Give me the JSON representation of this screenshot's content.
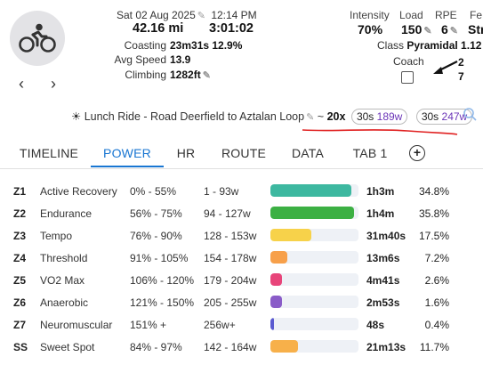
{
  "activity": {
    "date": "Sat 02 Aug 2025",
    "time": "12:14 PM",
    "distance": "42.16 mi",
    "duration": "3:01:02",
    "coasting_label": "Coasting",
    "coasting_value": "23m31s 12.9%",
    "avg_speed_label": "Avg Speed",
    "avg_speed_value": "13.9",
    "climbing_label": "Climbing",
    "climbing_value": "1282ft"
  },
  "metrics": {
    "intensity_label": "Intensity",
    "intensity_value": "70%",
    "load_label": "Load",
    "load_value": "150",
    "rpe_label": "RPE",
    "rpe_value": "6",
    "feel_label": "Fe",
    "feel_value": "Str",
    "class_label": "Class",
    "class_value": "Pyramidal 1.12",
    "coach_label": "Coach",
    "coach_num_1": "2",
    "coach_num_2": "7"
  },
  "title": {
    "text": "Lunch Ride - Road Deerfield to Aztalan Loop",
    "repeat": "~",
    "reps": "20x",
    "pill1_dur": "30s",
    "pill1_watts": "189w",
    "pill2_dur": "30s",
    "pill2_watts": "247w"
  },
  "nav": {
    "prev": "‹",
    "next": "›"
  },
  "tabs": [
    {
      "label": "TIMELINE"
    },
    {
      "label": "POWER"
    },
    {
      "label": "HR"
    },
    {
      "label": "ROUTE"
    },
    {
      "label": "DATA"
    },
    {
      "label": "TAB 1"
    }
  ],
  "active_tab": "POWER",
  "zones": [
    {
      "code": "Z1",
      "name": "Active Recovery",
      "pct": "0% - 55%",
      "watts": "1 - 93w",
      "time": "1h3m",
      "share": "34.8%",
      "fraction": 0.348,
      "color": "#3db8a0"
    },
    {
      "code": "Z2",
      "name": "Endurance",
      "pct": "56% - 75%",
      "watts": "94 - 127w",
      "time": "1h4m",
      "share": "35.8%",
      "fraction": 0.358,
      "color": "#3cb043"
    },
    {
      "code": "Z3",
      "name": "Tempo",
      "pct": "76% - 90%",
      "watts": "128 - 153w",
      "time": "31m40s",
      "share": "17.5%",
      "fraction": 0.175,
      "color": "#f7d24a"
    },
    {
      "code": "Z4",
      "name": "Threshold",
      "pct": "91% - 105%",
      "watts": "154 - 178w",
      "time": "13m6s",
      "share": "7.2%",
      "fraction": 0.072,
      "color": "#f7a04a"
    },
    {
      "code": "Z5",
      "name": "VO2 Max",
      "pct": "106% - 120%",
      "watts": "179 - 204w",
      "time": "4m41s",
      "share": "2.6%",
      "fraction": 0.026,
      "color": "#e8457a"
    },
    {
      "code": "Z6",
      "name": "Anaerobic",
      "pct": "121% - 150%",
      "watts": "205 - 255w",
      "time": "2m53s",
      "share": "1.6%",
      "fraction": 0.016,
      "color": "#8a5cc8"
    },
    {
      "code": "Z7",
      "name": "Neuromuscular",
      "pct": "151% +",
      "watts": "256w+",
      "time": "48s",
      "share": "0.4%",
      "fraction": 0.004,
      "color": "#5a5ad0"
    },
    {
      "code": "SS",
      "name": "Sweet Spot",
      "pct": "84% - 97%",
      "watts": "142 - 164w",
      "time": "21m13s",
      "share": "11.7%",
      "fraction": 0.117,
      "color": "#f7b04a"
    }
  ],
  "colors": {
    "accent": "#1976d2",
    "annotation_red": "#e02020",
    "pill_value": "#6b35b8"
  },
  "icons": {
    "avatar": "cyclist-icon",
    "edit": "pencil-icon",
    "title_prefix": "sun-icon",
    "search": "search-icon",
    "add_tab": "plus-circle-icon"
  }
}
